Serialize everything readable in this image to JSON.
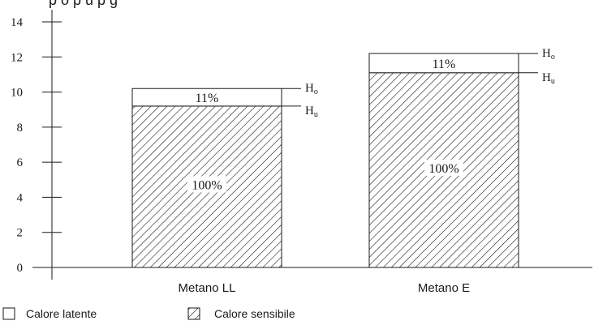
{
  "chart_data": {
    "type": "bar",
    "categories": [
      "Metano LL",
      "Metano E"
    ],
    "series": [
      {
        "name": "Calore sensibile",
        "values": [
          9.2,
          11.1
        ],
        "label": "100%"
      },
      {
        "name": "Calore latente",
        "values": [
          1.0,
          1.1
        ],
        "label": "11%"
      }
    ],
    "yticks": [
      0,
      2,
      4,
      6,
      8,
      10,
      12,
      14
    ],
    "ylim": [
      0,
      14
    ],
    "level_labels": {
      "top": {
        "main": "H",
        "sub": "o"
      },
      "bottom": {
        "main": "H",
        "sub": "u"
      }
    },
    "legend": [
      {
        "label": "Calore latente",
        "pattern": "empty"
      },
      {
        "label": "Calore sensibile",
        "pattern": "hatched"
      }
    ],
    "legend_position": "bottom-left",
    "grid": false
  }
}
